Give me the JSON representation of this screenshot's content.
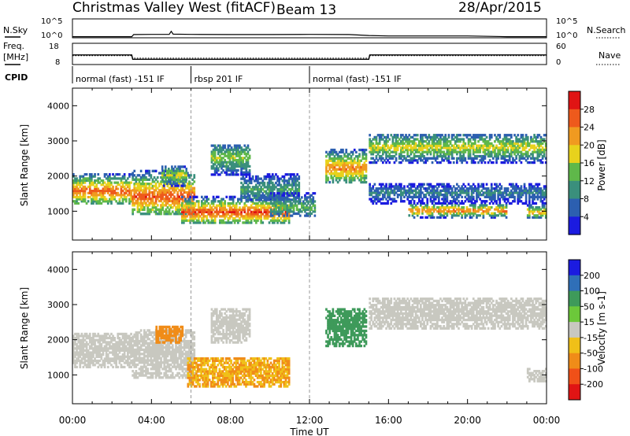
{
  "header": {
    "station": "Christmas Valley West (fitACF)",
    "beam": "Beam 13",
    "date": "28/Apr/2015"
  },
  "top_panels": {
    "nsky_label": "N.Sky",
    "nsearch_label": "N.Search",
    "noise_ticks": [
      "10^5",
      "10^0"
    ],
    "freq_label_line1": "Freq.",
    "freq_label_line2": "[MHz]",
    "freq_ticks": [
      "18",
      "8"
    ],
    "nave_label": "Nave",
    "nave_ticks": [
      "60",
      "0"
    ],
    "cpid_label": "CPID",
    "cpid_segments": [
      {
        "label": "normal (fast) -151 IF",
        "start_hr": 0,
        "end_hr": 6
      },
      {
        "label": "rbsp 201 IF",
        "start_hr": 6,
        "end_hr": 12
      },
      {
        "label": "normal (fast) -151 IF",
        "start_hr": 12,
        "end_hr": 24
      }
    ]
  },
  "x_axis": {
    "label": "Time UT",
    "ticks": [
      "00:00",
      "04:00",
      "08:00",
      "12:00",
      "16:00",
      "20:00",
      "00:00"
    ]
  },
  "chart_data": [
    {
      "type": "line",
      "title": "N.Sky",
      "x": [
        0,
        1,
        2,
        3,
        3.1,
        4,
        4.9,
        5,
        5.1,
        6,
        8,
        10,
        12,
        14,
        15,
        16,
        18,
        20,
        22,
        24
      ],
      "y": [
        2,
        2,
        2,
        2,
        7,
        8,
        8,
        50,
        9,
        8,
        7,
        7,
        8,
        7,
        4,
        3,
        3,
        3,
        2,
        2
      ],
      "yscale": "log",
      "ylim": [
        1,
        100000
      ]
    },
    {
      "type": "line",
      "title": "Freq. [MHz]",
      "x": [
        0,
        3,
        3.05,
        15,
        15.05,
        24
      ],
      "y": [
        12.5,
        12.5,
        10.5,
        10.5,
        12.5,
        12.5
      ],
      "ylim": [
        8,
        18
      ],
      "yunits": "MHz"
    },
    {
      "type": "line",
      "title": "Nave",
      "x": [
        0,
        3,
        3.05,
        15,
        15.05,
        24
      ],
      "y": [
        25,
        25,
        18,
        18,
        25,
        25
      ],
      "ylim": [
        0,
        60
      ]
    },
    {
      "type": "heatmap",
      "title": "Power",
      "xlabel": "Time UT",
      "ylabel": "Slant Range [km]",
      "xlim": [
        0,
        24
      ],
      "ylim": [
        180,
        4500
      ],
      "yticks": [
        1000,
        2000,
        3000,
        4000
      ],
      "colorbar": {
        "label": "Power [dB]",
        "ticks": [
          "4",
          "8",
          "12",
          "16",
          "20",
          "24",
          "28"
        ],
        "colors": [
          "#1b1be0",
          "#2c5fb0",
          "#3a8f7c",
          "#5fb84a",
          "#e8d21c",
          "#f09a20",
          "#ee5a1c",
          "#e01414"
        ]
      },
      "regions": [
        {
          "t0": 0.0,
          "t1": 3.0,
          "r0": 1200,
          "r1": 2200,
          "core_r": 1550,
          "peak_db": 26
        },
        {
          "t0": 3.0,
          "t1": 6.2,
          "r0": 900,
          "r1": 2300,
          "core_r": 1400,
          "peak_db": 27
        },
        {
          "t0": 4.5,
          "t1": 5.8,
          "r0": 1700,
          "r1": 2300,
          "core_r": 2000,
          "peak_db": 18
        },
        {
          "t0": 5.5,
          "t1": 11.0,
          "r0": 650,
          "r1": 1500,
          "core_r": 950,
          "peak_db": 28
        },
        {
          "t0": 7.0,
          "t1": 9.0,
          "r0": 1900,
          "r1": 2900,
          "core_r": 2500,
          "peak_db": 16
        },
        {
          "t0": 8.5,
          "t1": 11.5,
          "r0": 1300,
          "r1": 2200,
          "core_r": 1600,
          "peak_db": 12
        },
        {
          "t0": 10.0,
          "t1": 12.3,
          "r0": 850,
          "r1": 1600,
          "core_r": 1100,
          "peak_db": 14
        },
        {
          "t0": 12.8,
          "t1": 14.9,
          "r0": 1800,
          "r1": 2900,
          "core_r": 2200,
          "peak_db": 24
        },
        {
          "t0": 15.0,
          "t1": 24.0,
          "r0": 2300,
          "r1": 3200,
          "core_r": 2800,
          "peak_db": 18
        },
        {
          "t0": 15.0,
          "t1": 24.0,
          "r0": 1200,
          "r1": 1800,
          "core_r": 1500,
          "peak_db": 9
        },
        {
          "t0": 17.0,
          "t1": 22.0,
          "r0": 800,
          "r1": 1200,
          "core_r": 1000,
          "peak_db": 26
        },
        {
          "t0": 23.0,
          "t1": 24.0,
          "r0": 800,
          "r1": 1200,
          "core_r": 950,
          "peak_db": 22
        }
      ]
    },
    {
      "type": "heatmap",
      "title": "Velocity",
      "xlabel": "Time UT",
      "ylabel": "Slant Range [km]",
      "xlim": [
        0,
        24
      ],
      "ylim": [
        180,
        4500
      ],
      "yticks": [
        1000,
        2000,
        3000,
        4000
      ],
      "colorbar": {
        "label": "Velocity [m s-1]",
        "ticks": [
          "200",
          "100",
          "50",
          "15",
          "-15",
          "-50",
          "-100",
          "-200"
        ],
        "colors": [
          "#1b1be0",
          "#2f6fb8",
          "#3e9a5a",
          "#6cc83a",
          "#c8c8c0",
          "#f0c018",
          "#f08c18",
          "#f05018",
          "#e01414"
        ]
      },
      "regions": [
        {
          "t0": 0.0,
          "t1": 3.0,
          "r0": 1200,
          "r1": 2200,
          "vel": 0
        },
        {
          "t0": 3.0,
          "t1": 6.2,
          "r0": 900,
          "r1": 2300,
          "vel": 0
        },
        {
          "t0": 4.2,
          "t1": 5.6,
          "r0": 1900,
          "r1": 2400,
          "vel": -80
        },
        {
          "t0": 5.8,
          "t1": 11.0,
          "r0": 650,
          "r1": 1500,
          "vel": -50
        },
        {
          "t0": 7.0,
          "t1": 9.0,
          "r0": 1900,
          "r1": 2900,
          "vel": 0
        },
        {
          "t0": 12.8,
          "t1": 14.9,
          "r0": 1800,
          "r1": 2900,
          "vel": 60
        },
        {
          "t0": 15.0,
          "t1": 24.0,
          "r0": 2300,
          "r1": 3200,
          "vel": 0
        },
        {
          "t0": 23.0,
          "t1": 24.0,
          "r0": 800,
          "r1": 1200,
          "vel": 0
        }
      ]
    }
  ],
  "colors": {
    "frame": "#000000",
    "dash": "#9a9a9a",
    "background": "#ffffff"
  }
}
